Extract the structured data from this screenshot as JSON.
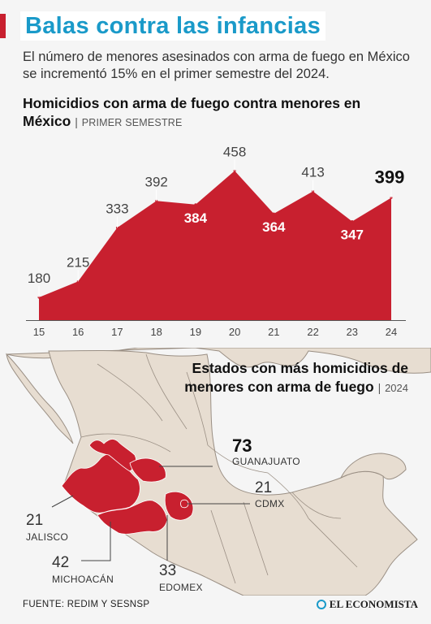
{
  "header": {
    "title": "Balas contra las infancias",
    "subtitle": "El número de menores asesinados con arma de fuego en México se incrementó 15% en el primer semestre del 2024."
  },
  "chart": {
    "title_main": "Homicidios con arma de fuego contra menores en México",
    "title_separator": "|",
    "title_period": "PRIMER SEMESTRE"
  },
  "chart_data": {
    "type": "area",
    "title": "Homicidios con arma de fuego contra menores en México | PRIMER SEMESTRE",
    "xlabel": "",
    "ylabel": "",
    "categories": [
      "15",
      "16",
      "17",
      "18",
      "19",
      "20",
      "21",
      "22",
      "23",
      "24"
    ],
    "values": [
      180,
      215,
      333,
      392,
      384,
      458,
      364,
      413,
      347,
      399
    ],
    "value_labels": [
      "180",
      "215",
      "333",
      "392",
      "384",
      "458",
      "364",
      "413",
      "347",
      "399"
    ],
    "ylim": [
      130,
      480
    ],
    "grid": false,
    "legend": "none",
    "colors": {
      "area": "#c8202f",
      "label_outside": "#444444",
      "label_inside": "#ffffff",
      "axis": "#555555"
    }
  },
  "map": {
    "title_main": "Estados con más homicidios de menores con arma de fuego",
    "title_separator": "|",
    "title_year": "2024",
    "states": [
      {
        "name": "GUANAJUATO",
        "value": "73"
      },
      {
        "name": "CDMX",
        "value": "21"
      },
      {
        "name": "JALISCO",
        "value": "21"
      },
      {
        "name": "MICHOACÁN",
        "value": "42"
      },
      {
        "name": "EDOMEX",
        "value": "33"
      }
    ],
    "colors": {
      "highlight": "#c8202f",
      "land": "#e7ddd1",
      "border": "#9a8f84",
      "sea": "#f5f5f5"
    }
  },
  "footer": {
    "source": "FUENTE: REDIM Y SESNSP",
    "brand": "EL ECONOMISTA"
  }
}
